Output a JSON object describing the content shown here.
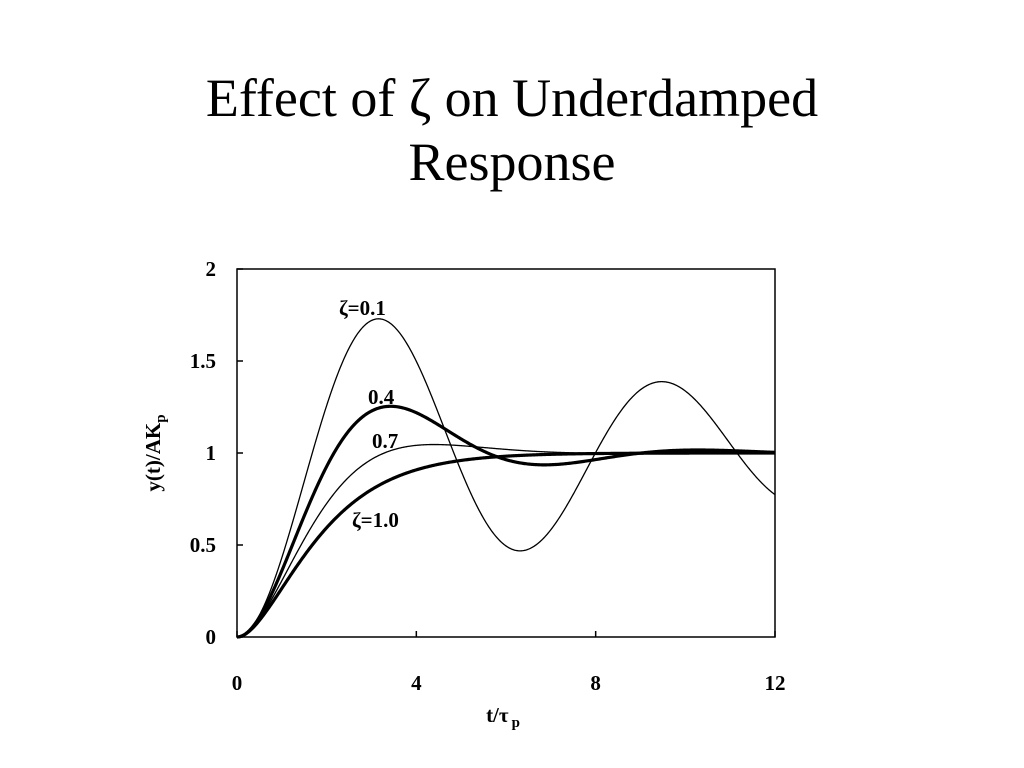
{
  "slide": {
    "title_line1": "Effect of ζ on Underdamped",
    "title_line2": "Response"
  },
  "chart_data": {
    "type": "line",
    "title": "Effect of ζ on Underdamped Response",
    "xlabel": "t/τ",
    "xlabel_subscript": "p",
    "ylabel": "y(t)/AK",
    "ylabel_subscript": "p",
    "xlim": [
      0,
      12
    ],
    "ylim": [
      0,
      2
    ],
    "xticks": [
      0,
      4,
      8,
      12
    ],
    "yticks": [
      0,
      0.5,
      1,
      1.5,
      2
    ],
    "ytick_labels": [
      "0",
      "0.5",
      "1",
      "1.5",
      "2"
    ],
    "xtick_labels": [
      "0",
      "4",
      "8",
      "12"
    ],
    "grid": false,
    "legend": "none",
    "model": "second-order underdamped step response, y = 1 - e^(-ζt)(cos(√(1-ζ²)t) + ζ/√(1-ζ²) sin(√(1-ζ²)t))",
    "series": [
      {
        "label": "ζ=0.1",
        "zeta": 0.1,
        "stroke_width": 1.3
      },
      {
        "label": "0.4",
        "zeta": 0.4,
        "stroke_width": 3.2
      },
      {
        "label": "0.7",
        "zeta": 0.7,
        "stroke_width": 1.3
      },
      {
        "label": "ζ=1.0",
        "zeta": 1.0,
        "stroke_width": 3.2
      }
    ],
    "colors": {
      "line": "#000000",
      "background": "#ffffff"
    }
  }
}
